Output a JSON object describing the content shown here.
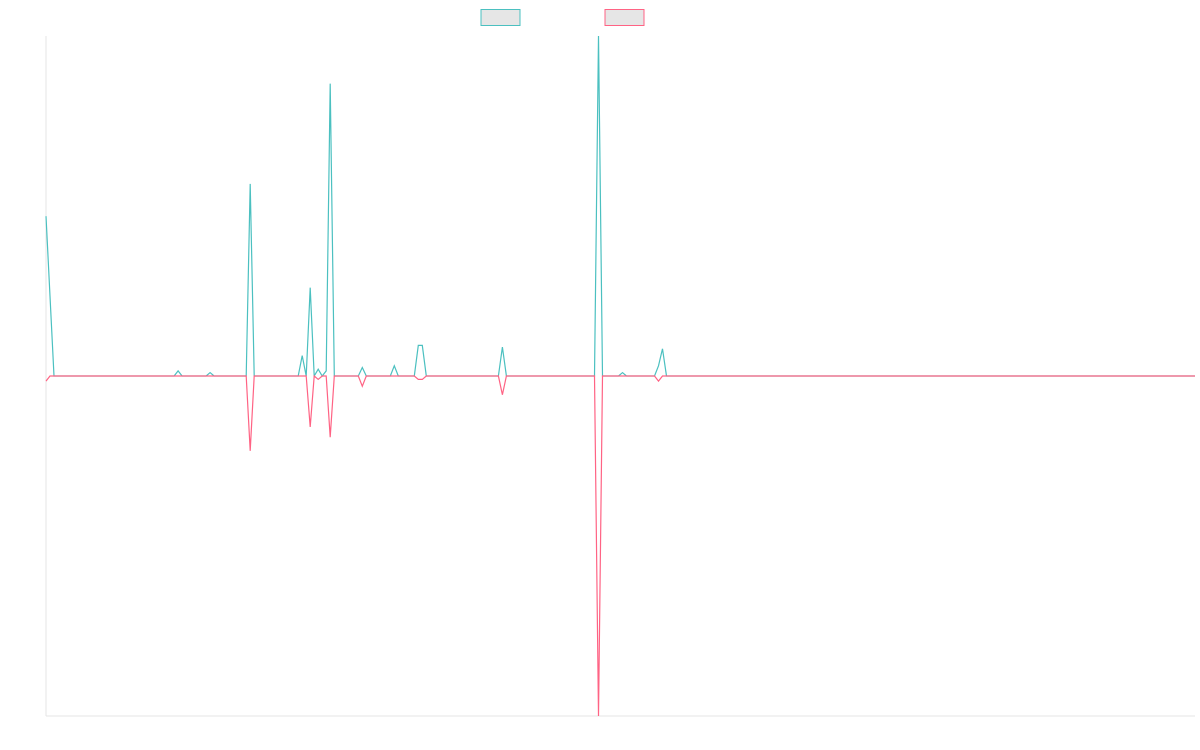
{
  "chart_data": {
    "type": "line",
    "title": "",
    "xlabel": "",
    "ylabel": "",
    "x_range": [
      0,
      287
    ],
    "ylim": [
      -1,
      1
    ],
    "grid": false,
    "legend": "top-center",
    "baseline": 0,
    "series": [
      {
        "color": "#4bc0c0",
        "values": [
          [
            0,
            0.47
          ],
          [
            1,
            0.235
          ],
          [
            2,
            0
          ],
          [
            25,
            0
          ],
          [
            33,
            0.015
          ],
          [
            41,
            0.01
          ],
          [
            51,
            0.565
          ],
          [
            64,
            0.06
          ],
          [
            66,
            0.26
          ],
          [
            68,
            0.02
          ],
          [
            70,
            0.015
          ],
          [
            71,
            0.86
          ],
          [
            79,
            0.025
          ],
          [
            87,
            0.03
          ],
          [
            93,
            0.09
          ],
          [
            94,
            0.09
          ],
          [
            114,
            0.085
          ],
          [
            138,
            1.0
          ],
          [
            144,
            0.01
          ],
          [
            153,
            0.03
          ],
          [
            154,
            0.08
          ],
          [
            287,
            0
          ]
        ]
      },
      {
        "color": "#ff6384",
        "values": [
          [
            0,
            -0.015
          ],
          [
            51,
            -0.22
          ],
          [
            66,
            -0.15
          ],
          [
            68,
            -0.01
          ],
          [
            71,
            -0.18
          ],
          [
            79,
            -0.03
          ],
          [
            93,
            -0.01
          ],
          [
            94,
            -0.01
          ],
          [
            114,
            -0.055
          ],
          [
            138,
            -1.0
          ],
          [
            153,
            -0.015
          ],
          [
            287,
            0
          ]
        ]
      }
    ]
  },
  "legend": {
    "items": [
      {
        "color": "#4bc0c0"
      },
      {
        "color": "#ff6384"
      }
    ]
  }
}
